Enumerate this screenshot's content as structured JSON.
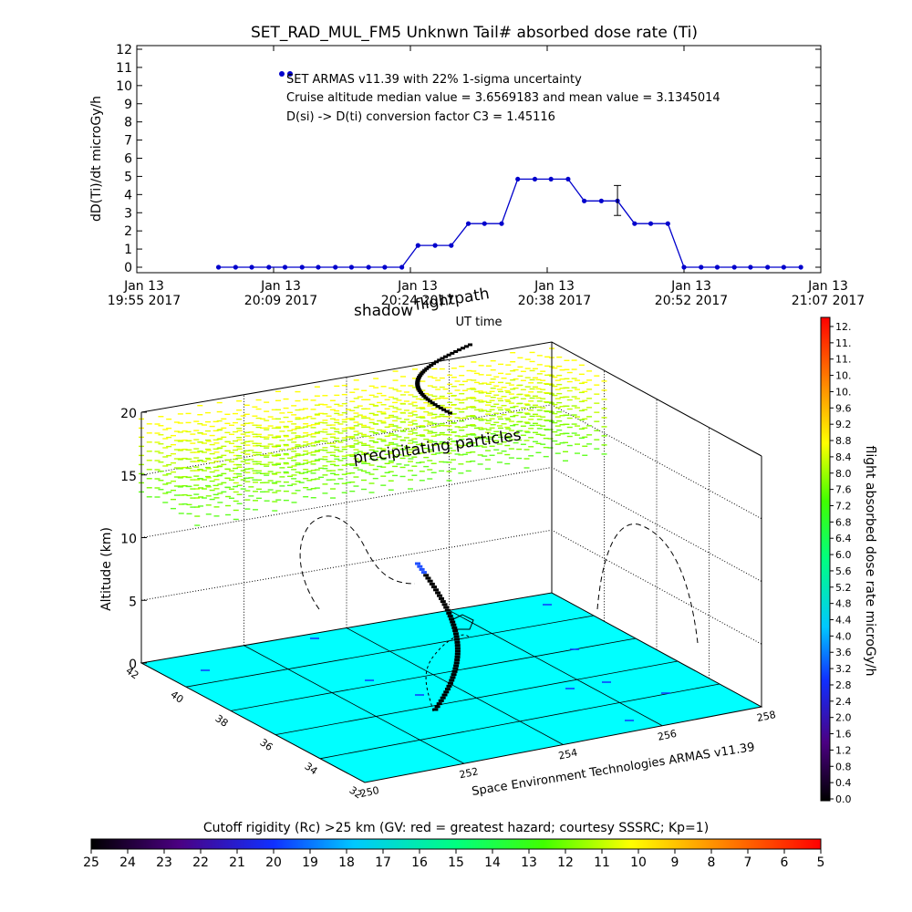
{
  "top_chart": {
    "title": "SET_RAD_MUL_FM5 Unknwn Tail#  absorbed dose rate (Ti)",
    "ylabel": "dD(Ti)/dt microGy/h",
    "xlabel": "UT time",
    "yticks": [
      "0",
      "1",
      "2",
      "3",
      "4",
      "5",
      "6",
      "7",
      "8",
      "9",
      "10",
      "11",
      "12"
    ],
    "xticks": [
      {
        "line1": "Jan 13",
        "line2": "19:55 2017"
      },
      {
        "line1": "Jan 13",
        "line2": "20:09 2017"
      },
      {
        "line1": "Jan 13",
        "line2": "20:24 2017"
      },
      {
        "line1": "Jan 13",
        "line2": "20:38 2017"
      },
      {
        "line1": "Jan 13",
        "line2": "20:52 2017"
      },
      {
        "line1": "Jan 13",
        "line2": "21:07 2017"
      }
    ],
    "legend": {
      "line1": "SET ARMAS v11.39 with 22% 1-sigma uncertainty",
      "line2": "Cruise altitude median value = 3.6569183 and mean value = 3.1345014",
      "line3": "D(si) -> D(ti) conversion factor C3 = 1.45116"
    }
  },
  "chart_data": [
    {
      "type": "line",
      "title": "SET_RAD_MUL_FM5 Unknwn Tail#  absorbed dose rate (Ti)",
      "xlabel": "UT time",
      "ylabel": "dD(Ti)/dt microGy/h",
      "ylim": [
        0,
        12
      ],
      "xlim": [
        "Jan 13 19:55 2017",
        "Jan 13 21:07 2017"
      ],
      "x_minutes_after_1955": [
        7,
        9,
        11,
        13,
        15,
        17,
        19,
        21,
        23,
        25,
        27,
        29,
        31,
        33,
        35,
        37,
        39,
        41,
        43,
        45,
        47,
        49,
        51,
        53,
        55,
        57,
        59,
        61,
        63,
        65,
        67,
        69,
        71
      ],
      "x_labels_minutes": [
        8.6,
        10.5,
        12.4,
        14.3,
        16.2,
        18.1,
        20.0,
        21.9,
        23.8,
        25.7,
        27.6,
        29.5,
        31.4,
        33.3,
        35.2,
        37.1,
        39.0,
        40.9,
        42.8,
        44.7,
        46.6,
        48.5,
        50.4,
        52.3,
        54.2,
        56.1,
        58.0,
        59.9,
        61.8,
        63.7,
        65.6,
        67.5,
        69.4
      ],
      "series": [
        {
          "name": "SET ARMAS v11.39",
          "color": "#0000cc",
          "values": [
            0,
            0,
            0,
            0,
            0,
            0,
            0,
            0,
            0,
            0,
            0,
            0,
            0,
            0,
            0,
            0,
            0,
            0,
            0,
            0,
            0,
            0,
            0,
            0,
            0,
            0,
            0,
            0,
            0,
            0,
            0,
            0,
            0
          ]
        }
      ],
      "profile_minutes": [
        8.6,
        10.4,
        12.1,
        13.9,
        15.6,
        17.4,
        19.1,
        20.9,
        22.6,
        24.4,
        26.1,
        27.9,
        29.6,
        31.4,
        33.1,
        34.9,
        36.6,
        38.4,
        40.1,
        41.9,
        43.6,
        45.4,
        47.1,
        48.9,
        50.6,
        52.4,
        54.1,
        55.9,
        57.6,
        59.4,
        61.1,
        62.9,
        64.6,
        66.4,
        68.1,
        69.9
      ],
      "profile_values": [
        0,
        0,
        0,
        0,
        0,
        0,
        0,
        0,
        0,
        0,
        0,
        0,
        1.2,
        1.2,
        1.2,
        2.4,
        2.4,
        2.4,
        4.85,
        4.85,
        4.85,
        4.85,
        3.65,
        3.65,
        3.65,
        2.4,
        2.4,
        2.4,
        0,
        0,
        0,
        0,
        0,
        0,
        0,
        0
      ],
      "error_bar": {
        "value": 3.65,
        "low": 2.85,
        "high": 4.5
      },
      "legend_position": "top-left"
    },
    {
      "type": "scatter",
      "title": "flightpath",
      "zlabel": "Altitude (km)",
      "zticks": [
        0,
        5,
        10,
        15,
        20
      ],
      "lat_ticks": [
        32,
        34,
        36,
        38,
        40,
        42
      ],
      "lon_ticks": [
        250,
        252,
        254,
        256,
        258
      ],
      "colorbar_label": "flight absorbed dose rate microGy/h",
      "colorbar_ticks": [
        "0.0",
        "0.4",
        "0.8",
        "1.2",
        "1.6",
        "2.0",
        "2.4",
        "2.8",
        "3.2",
        "3.6",
        "4.0",
        "4.4",
        "4.8",
        "5.2",
        "5.6",
        "6.0",
        "6.4",
        "6.8",
        "7.2",
        "7.6",
        "8.0",
        "8.4",
        "8.8",
        "9.2",
        "9.6",
        "10.",
        "10.",
        "11.",
        "11.",
        "12."
      ],
      "annotations": [
        "shadow",
        "flightpath",
        "precipitating particles"
      ]
    }
  ],
  "map3d": {
    "annotation_shadow": "shadow",
    "annotation_flightpath": "flightpath",
    "annotation_particles": "precipitating particles",
    "zlabel": "Altitude (km)",
    "zticks": [
      "0",
      "5",
      "10",
      "15",
      "20"
    ],
    "lat_ticks": [
      "32",
      "34",
      "36",
      "38",
      "40",
      "42"
    ],
    "lon_ticks": [
      "250",
      "252",
      "254",
      "256",
      "258"
    ],
    "credit": "Space Environment Technologies ARMAS v11.39",
    "colorbar_label": "flight absorbed dose rate microGy/h",
    "colorbar_ticks": [
      "0.0",
      "0.4",
      "0.8",
      "1.2",
      "1.6",
      "2.0",
      "2.4",
      "2.8",
      "3.2",
      "3.6",
      "4.0",
      "4.4",
      "4.8",
      "5.2",
      "5.6",
      "6.0",
      "6.4",
      "6.8",
      "7.2",
      "7.6",
      "8.0",
      "8.4",
      "8.8",
      "9.2",
      "9.6",
      "10.",
      "10.",
      "11.",
      "11.",
      "12."
    ],
    "floor_color": "#00ffff"
  },
  "cutoff_bar": {
    "label": "Cutoff rigidity (Rc) >25 km (GV: red = greatest hazard; courtesy SSSRC; Kp=1)",
    "ticks": [
      "25",
      "24",
      "23",
      "22",
      "21",
      "20",
      "19",
      "18",
      "17",
      "16",
      "15",
      "14",
      "13",
      "12",
      "11",
      "10",
      "9",
      "8",
      "7",
      "6",
      "5"
    ]
  }
}
